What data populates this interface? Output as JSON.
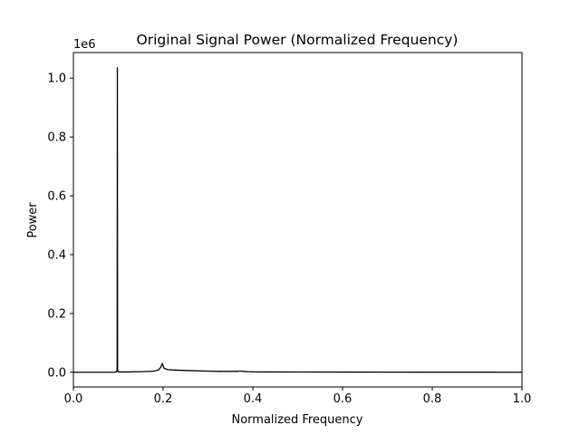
{
  "chart_data": {
    "type": "line",
    "title": "Original Signal Power (Normalized Frequency)",
    "xlabel": "Normalized Frequency",
    "ylabel": "Power",
    "y_offset_label": "1e6",
    "xlim": [
      0.0,
      1.0
    ],
    "ylim": [
      -0.05,
      1.087
    ],
    "x_ticks": [
      0.0,
      0.2,
      0.4,
      0.6,
      0.8,
      1.0
    ],
    "x_tick_labels": [
      "0.0",
      "0.2",
      "0.4",
      "0.6",
      "0.8",
      "1.0"
    ],
    "y_ticks": [
      0.0,
      0.2,
      0.4,
      0.6,
      0.8,
      1.0
    ],
    "y_tick_labels": [
      "0.0",
      "0.2",
      "0.4",
      "0.6",
      "0.8",
      "1.0"
    ],
    "grid": false,
    "line_color": "#000000",
    "series": [
      {
        "x": [
          0.0,
          0.05,
          0.09,
          0.095,
          0.097,
          0.0975,
          0.098,
          0.0985,
          0.099,
          0.101,
          0.12,
          0.15,
          0.18,
          0.19,
          0.195,
          0.198,
          0.2,
          0.202,
          0.205,
          0.21,
          0.22,
          0.25,
          0.3,
          0.33,
          0.34,
          0.345,
          0.35,
          0.355,
          0.36,
          0.365,
          0.37,
          0.375,
          0.38,
          0.39,
          0.4,
          0.45,
          0.5,
          0.6,
          0.7,
          0.8,
          0.9,
          1.0
        ],
        "y": [
          0.0,
          0.0,
          0.0,
          0.001,
          0.003,
          0.02,
          1.035,
          0.02,
          0.003,
          0.001,
          0.001,
          0.002,
          0.004,
          0.008,
          0.018,
          0.03,
          0.022,
          0.014,
          0.012,
          0.009,
          0.008,
          0.006,
          0.004,
          0.003,
          0.0035,
          0.003,
          0.0035,
          0.003,
          0.0035,
          0.003,
          0.004,
          0.004,
          0.003,
          0.002,
          0.0015,
          0.001,
          0.0008,
          0.0006,
          0.0004,
          0.0003,
          0.0002,
          0.0001
        ]
      }
    ]
  }
}
